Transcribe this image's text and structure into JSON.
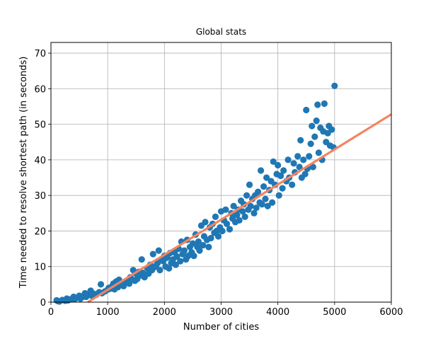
{
  "chart_data": {
    "type": "scatter",
    "title": "Global stats",
    "xlabel": "Number of cities",
    "ylabel": "Time needed to resolve shortest path (in seconds)",
    "xlim": [
      0,
      6000
    ],
    "ylim": [
      0,
      73
    ],
    "xticks": [
      0,
      1000,
      2000,
      3000,
      4000,
      5000,
      6000
    ],
    "yticks": [
      0,
      10,
      20,
      30,
      40,
      50,
      60,
      70
    ],
    "grid": true,
    "colors": {
      "points": "#1f77b4",
      "fit_line": "#f4845f"
    },
    "series": [
      {
        "type": "scatter",
        "points": [
          [
            100,
            0.5
          ],
          [
            120,
            0.3
          ],
          [
            150,
            0.2
          ],
          [
            200,
            0.6
          ],
          [
            250,
            0.4
          ],
          [
            280,
            1.0
          ],
          [
            300,
            0.5
          ],
          [
            350,
            0.8
          ],
          [
            400,
            1.5
          ],
          [
            420,
            0.9
          ],
          [
            450,
            1.2
          ],
          [
            500,
            1.8
          ],
          [
            520,
            1.0
          ],
          [
            550,
            1.4
          ],
          [
            600,
            2.5
          ],
          [
            620,
            1.5
          ],
          [
            650,
            2.0
          ],
          [
            700,
            3.2
          ],
          [
            720,
            1.8
          ],
          [
            750,
            2.4
          ],
          [
            800,
            2.1
          ],
          [
            850,
            2.8
          ],
          [
            880,
            5.0
          ],
          [
            900,
            2.5
          ],
          [
            950,
            3.0
          ],
          [
            1000,
            3.5
          ],
          [
            1020,
            4.0
          ],
          [
            1050,
            3.8
          ],
          [
            1080,
            4.5
          ],
          [
            1100,
            5.2
          ],
          [
            1120,
            3.6
          ],
          [
            1150,
            5.8
          ],
          [
            1180,
            4.2
          ],
          [
            1200,
            6.3
          ],
          [
            1220,
            4.8
          ],
          [
            1250,
            5.0
          ],
          [
            1280,
            4.5
          ],
          [
            1300,
            5.5
          ],
          [
            1350,
            6.0
          ],
          [
            1380,
            5.2
          ],
          [
            1400,
            7.0
          ],
          [
            1420,
            6.5
          ],
          [
            1450,
            9.0
          ],
          [
            1480,
            6.0
          ],
          [
            1500,
            8.0
          ],
          [
            1520,
            6.5
          ],
          [
            1550,
            8.5
          ],
          [
            1580,
            7.5
          ],
          [
            1600,
            12.0
          ],
          [
            1620,
            8.2
          ],
          [
            1650,
            7.0
          ],
          [
            1700,
            9.5
          ],
          [
            1720,
            8.0
          ],
          [
            1750,
            10.5
          ],
          [
            1780,
            9.0
          ],
          [
            1800,
            13.5
          ],
          [
            1820,
            9.8
          ],
          [
            1850,
            10.2
          ],
          [
            1880,
            11.0
          ],
          [
            1900,
            14.5
          ],
          [
            1920,
            9.0
          ],
          [
            1950,
            12.0
          ],
          [
            1980,
            11.5
          ],
          [
            2000,
            13.0
          ],
          [
            2020,
            10.0
          ],
          [
            2050,
            12.5
          ],
          [
            2080,
            9.5
          ],
          [
            2100,
            13.8
          ],
          [
            2120,
            11.0
          ],
          [
            2150,
            12.0
          ],
          [
            2180,
            14.0
          ],
          [
            2200,
            10.5
          ],
          [
            2220,
            12.8
          ],
          [
            2250,
            15.0
          ],
          [
            2280,
            11.5
          ],
          [
            2300,
            17.0
          ],
          [
            2320,
            13.5
          ],
          [
            2350,
            14.5
          ],
          [
            2380,
            12.0
          ],
          [
            2400,
            17.5
          ],
          [
            2420,
            13.0
          ],
          [
            2450,
            15.5
          ],
          [
            2480,
            14.0
          ],
          [
            2500,
            16.5
          ],
          [
            2520,
            13.0
          ],
          [
            2550,
            19.0
          ],
          [
            2580,
            15.5
          ],
          [
            2600,
            17.0
          ],
          [
            2620,
            14.5
          ],
          [
            2650,
            21.5
          ],
          [
            2680,
            16.0
          ],
          [
            2700,
            18.5
          ],
          [
            2720,
            22.5
          ],
          [
            2750,
            17.5
          ],
          [
            2780,
            15.5
          ],
          [
            2800,
            21.0
          ],
          [
            2820,
            18.0
          ],
          [
            2850,
            22.0
          ],
          [
            2880,
            19.5
          ],
          [
            2900,
            24.0
          ],
          [
            2920,
            20.0
          ],
          [
            2950,
            18.5
          ],
          [
            2980,
            21.0
          ],
          [
            3000,
            25.5
          ],
          [
            3020,
            20.0
          ],
          [
            3050,
            23.0
          ],
          [
            3080,
            26.0
          ],
          [
            3100,
            22.0
          ],
          [
            3150,
            20.5
          ],
          [
            3180,
            25.0
          ],
          [
            3200,
            23.5
          ],
          [
            3220,
            27.0
          ],
          [
            3250,
            22.5
          ],
          [
            3280,
            24.5
          ],
          [
            3300,
            26.0
          ],
          [
            3320,
            23.0
          ],
          [
            3350,
            28.5
          ],
          [
            3380,
            25.5
          ],
          [
            3400,
            27.5
          ],
          [
            3420,
            24.0
          ],
          [
            3450,
            30.0
          ],
          [
            3480,
            26.0
          ],
          [
            3500,
            33.0
          ],
          [
            3520,
            27.0
          ],
          [
            3550,
            29.0
          ],
          [
            3580,
            25.0
          ],
          [
            3600,
            30.0
          ],
          [
            3620,
            26.5
          ],
          [
            3650,
            31.0
          ],
          [
            3680,
            28.0
          ],
          [
            3700,
            37.0
          ],
          [
            3720,
            27.5
          ],
          [
            3750,
            32.5
          ],
          [
            3780,
            29.0
          ],
          [
            3800,
            35.0
          ],
          [
            3820,
            27.0
          ],
          [
            3850,
            31.5
          ],
          [
            3880,
            34.0
          ],
          [
            3900,
            28.0
          ],
          [
            3920,
            39.5
          ],
          [
            3950,
            33.0
          ],
          [
            3980,
            36.0
          ],
          [
            4000,
            38.5
          ],
          [
            4020,
            30.0
          ],
          [
            4050,
            35.5
          ],
          [
            4080,
            32.0
          ],
          [
            4100,
            37.0
          ],
          [
            4150,
            34.0
          ],
          [
            4180,
            40.0
          ],
          [
            4200,
            35.0
          ],
          [
            4250,
            33.0
          ],
          [
            4280,
            39.0
          ],
          [
            4300,
            36.5
          ],
          [
            4350,
            41.0
          ],
          [
            4380,
            38.0
          ],
          [
            4400,
            45.5
          ],
          [
            4420,
            35.0
          ],
          [
            4450,
            40.0
          ],
          [
            4480,
            36.0
          ],
          [
            4500,
            54.0
          ],
          [
            4520,
            37.5
          ],
          [
            4550,
            41.0
          ],
          [
            4580,
            44.5
          ],
          [
            4600,
            49.5
          ],
          [
            4620,
            38.0
          ],
          [
            4650,
            46.5
          ],
          [
            4680,
            51.0
          ],
          [
            4700,
            55.5
          ],
          [
            4720,
            42.0
          ],
          [
            4750,
            49.0
          ],
          [
            4780,
            40.0
          ],
          [
            4800,
            48.0
          ],
          [
            4820,
            55.8
          ],
          [
            4850,
            45.0
          ],
          [
            4880,
            47.5
          ],
          [
            4900,
            49.5
          ],
          [
            4920,
            44.0
          ],
          [
            4950,
            48.5
          ],
          [
            4980,
            43.5
          ],
          [
            5000,
            60.8
          ]
        ]
      },
      {
        "type": "line",
        "points": [
          [
            650,
            0
          ],
          [
            6000,
            52.8
          ]
        ]
      }
    ]
  }
}
